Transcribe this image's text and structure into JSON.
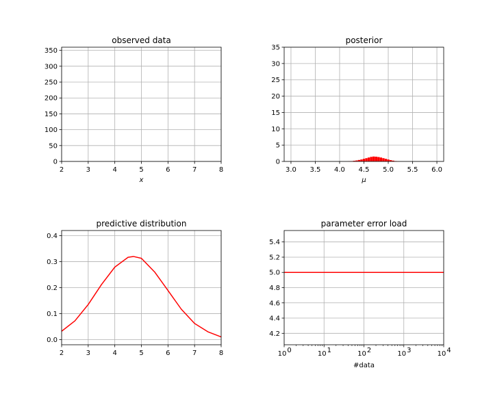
{
  "chart_data": [
    {
      "type": "scatter",
      "title": "observed data",
      "xlabel": "x",
      "ylabel": "",
      "xlim": [
        2,
        8
      ],
      "ylim": [
        0,
        360
      ],
      "xticks": [
        2,
        3,
        4,
        5,
        6,
        7,
        8
      ],
      "yticks": [
        0,
        50,
        100,
        150,
        200,
        250,
        300,
        350
      ],
      "grid": true,
      "series": [
        {
          "values": []
        }
      ]
    },
    {
      "type": "bar",
      "title": "posterior",
      "xlabel": "μ",
      "ylabel": "",
      "xlim": [
        2.86,
        6.14
      ],
      "ylim": [
        0,
        35
      ],
      "xticks": [
        3.0,
        3.5,
        4.0,
        4.5,
        5.0,
        5.5,
        6.0
      ],
      "xtick_labels": [
        "3.0",
        "3.5",
        "4.0",
        "4.5",
        "5.0",
        "5.5",
        "6.0"
      ],
      "yticks": [
        0,
        5,
        10,
        15,
        20,
        25,
        30,
        35
      ],
      "grid": true,
      "color": "#ff0000",
      "series": [
        {
          "x": [
            4.2,
            4.25,
            4.3,
            4.35,
            4.4,
            4.45,
            4.5,
            4.55,
            4.6,
            4.65,
            4.7,
            4.75,
            4.8,
            4.85,
            4.9,
            4.95,
            5.0,
            5.05,
            5.1,
            5.15,
            5.2
          ],
          "values": [
            0.05,
            0.1,
            0.2,
            0.3,
            0.45,
            0.6,
            0.8,
            1.0,
            1.2,
            1.4,
            1.5,
            1.45,
            1.35,
            1.2,
            1.0,
            0.8,
            0.6,
            0.4,
            0.25,
            0.12,
            0.05
          ]
        }
      ]
    },
    {
      "type": "line",
      "title": "predictive distribution",
      "xlabel": "",
      "ylabel": "",
      "xlim": [
        2,
        8
      ],
      "ylim": [
        -0.02,
        0.42
      ],
      "xticks": [
        2,
        3,
        4,
        5,
        6,
        7,
        8
      ],
      "yticks": [
        0.0,
        0.1,
        0.2,
        0.3,
        0.4
      ],
      "ytick_labels": [
        "0.0",
        "0.1",
        "0.2",
        "0.3",
        "0.4"
      ],
      "grid": true,
      "color": "#ff0000",
      "series": [
        {
          "x": [
            2.0,
            2.5,
            3.0,
            3.5,
            4.0,
            4.5,
            4.7,
            5.0,
            5.5,
            6.0,
            6.5,
            7.0,
            7.5,
            8.0
          ],
          "values": [
            0.032,
            0.072,
            0.135,
            0.212,
            0.279,
            0.317,
            0.32,
            0.313,
            0.26,
            0.189,
            0.117,
            0.062,
            0.03,
            0.01
          ]
        }
      ]
    },
    {
      "type": "line",
      "title": "parameter error load",
      "xlabel": "#data",
      "ylabel": "",
      "xscale": "log",
      "xlim": [
        1,
        10000
      ],
      "ylim": [
        4.05,
        5.55
      ],
      "xticks": [
        1,
        10,
        100,
        1000,
        10000
      ],
      "xtick_labels": [
        {
          "base": "10",
          "exp": "0"
        },
        {
          "base": "10",
          "exp": "1"
        },
        {
          "base": "10",
          "exp": "2"
        },
        {
          "base": "10",
          "exp": "3"
        },
        {
          "base": "10",
          "exp": "4"
        }
      ],
      "yticks": [
        4.2,
        4.4,
        4.6,
        4.8,
        5.0,
        5.2,
        5.4
      ],
      "ytick_labels": [
        "4.2",
        "4.4",
        "4.6",
        "4.8",
        "5.0",
        "5.2",
        "5.4"
      ],
      "grid": true,
      "color": "#ff0000",
      "series": [
        {
          "x": [
            1,
            10000
          ],
          "values": [
            5.0,
            5.0
          ]
        }
      ]
    }
  ]
}
